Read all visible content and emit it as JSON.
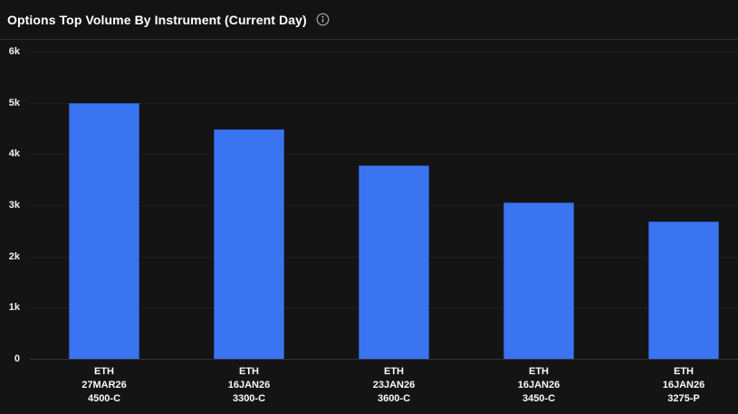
{
  "header": {
    "title": "Options Top Volume By Instrument (Current Day)",
    "info_icon": "info-circle"
  },
  "colors": {
    "background": "#141414",
    "bar_fill": "#3b74f1",
    "bar_border": "#2a55b4",
    "gridline": "#1f1f22",
    "axis_baseline": "#32323a",
    "header_divider": "#2a2a2e",
    "title_text": "#ffffff",
    "axis_text": "#f2f2f2",
    "info_icon": "#a8a8a8"
  },
  "chart_data": {
    "type": "bar",
    "title": "Options Top Volume By Instrument (Current Day)",
    "categories": [
      "ETH 27MAR26 4500-C",
      "ETH 16JAN26 3300-C",
      "ETH 23JAN26 3600-C",
      "ETH 16JAN26 3450-C",
      "ETH 16JAN26 3275-P"
    ],
    "category_lines": [
      [
        "ETH",
        "27MAR26",
        "4500-C"
      ],
      [
        "ETH",
        "16JAN26",
        "3300-C"
      ],
      [
        "ETH",
        "23JAN26",
        "3600-C"
      ],
      [
        "ETH",
        "16JAN26",
        "3450-C"
      ],
      [
        "ETH",
        "16JAN26",
        "3275-P"
      ]
    ],
    "values": [
      5000,
      4480,
      3780,
      3060,
      2680
    ],
    "xlabel": "",
    "ylabel": "",
    "ylim": [
      0,
      6000
    ],
    "yticks": [
      {
        "value": 0,
        "label": "0"
      },
      {
        "value": 1000,
        "label": "1k"
      },
      {
        "value": 2000,
        "label": "2k"
      },
      {
        "value": 3000,
        "label": "3k"
      },
      {
        "value": 4000,
        "label": "4k"
      },
      {
        "value": 5000,
        "label": "5k"
      },
      {
        "value": 6000,
        "label": "6k"
      }
    ],
    "grid": "horizontal",
    "legend": "none"
  }
}
